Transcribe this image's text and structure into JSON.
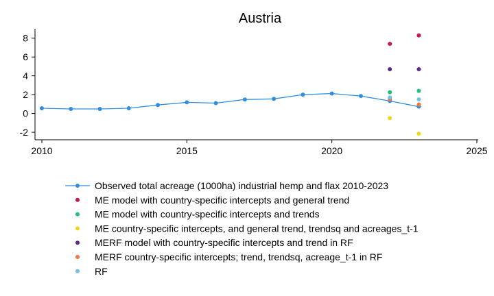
{
  "chart_data": {
    "type": "scatter",
    "title": "Austria",
    "xlabel": "",
    "ylabel": "",
    "xlim": [
      2010,
      2025
    ],
    "ylim": [
      -2.8,
      9
    ],
    "x_ticks": [
      2010,
      2015,
      2020,
      2025
    ],
    "y_ticks": [
      -2,
      0,
      2,
      4,
      6,
      8
    ],
    "grid": false,
    "legend_position": "bottom",
    "series": [
      {
        "name": "Observed total acreage (1000ha) industrial hemp and flax 2010-2023",
        "kind": "line",
        "color": "#2f8fdd",
        "points": [
          {
            "x": 2010,
            "y": 0.55
          },
          {
            "x": 2011,
            "y": 0.48
          },
          {
            "x": 2012,
            "y": 0.48
          },
          {
            "x": 2013,
            "y": 0.55
          },
          {
            "x": 2014,
            "y": 0.9
          },
          {
            "x": 2015,
            "y": 1.18
          },
          {
            "x": 2016,
            "y": 1.1
          },
          {
            "x": 2017,
            "y": 1.48
          },
          {
            "x": 2018,
            "y": 1.55
          },
          {
            "x": 2019,
            "y": 2.0
          },
          {
            "x": 2020,
            "y": 2.12
          },
          {
            "x": 2021,
            "y": 1.85
          },
          {
            "x": 2022,
            "y": 1.32
          },
          {
            "x": 2023,
            "y": 0.72
          }
        ]
      },
      {
        "name": "ME model with country-specific intercepts and general trend",
        "kind": "points",
        "color": "#c8174f",
        "points": [
          {
            "x": 2022,
            "y": 7.4
          },
          {
            "x": 2023,
            "y": 8.3
          }
        ]
      },
      {
        "name": "ME model with country-specific intercepts and trends",
        "kind": "points",
        "color": "#1fbf7f",
        "points": [
          {
            "x": 2022,
            "y": 2.25
          },
          {
            "x": 2023,
            "y": 2.4
          }
        ]
      },
      {
        "name": "ME country-specific intercepts, and general trend, trendsq and acreages_t-1",
        "kind": "points",
        "color": "#f2d61a",
        "points": [
          {
            "x": 2022,
            "y": -0.5
          },
          {
            "x": 2023,
            "y": -2.15
          }
        ]
      },
      {
        "name": "MERF model with country-specific intercepts and trend in RF",
        "kind": "points",
        "color": "#5b2a86",
        "points": [
          {
            "x": 2022,
            "y": 4.7
          },
          {
            "x": 2023,
            "y": 4.7
          }
        ]
      },
      {
        "name": "MERF country-specific intercepts; trend, trendsq, acreage_t-1 in RF",
        "kind": "points",
        "color": "#f0763a",
        "points": [
          {
            "x": 2022,
            "y": 1.5
          },
          {
            "x": 2023,
            "y": 0.95
          }
        ]
      },
      {
        "name": "RF",
        "kind": "points",
        "color": "#6ec2ea",
        "points": [
          {
            "x": 2022,
            "y": 1.7
          },
          {
            "x": 2023,
            "y": 1.5
          }
        ]
      }
    ]
  }
}
